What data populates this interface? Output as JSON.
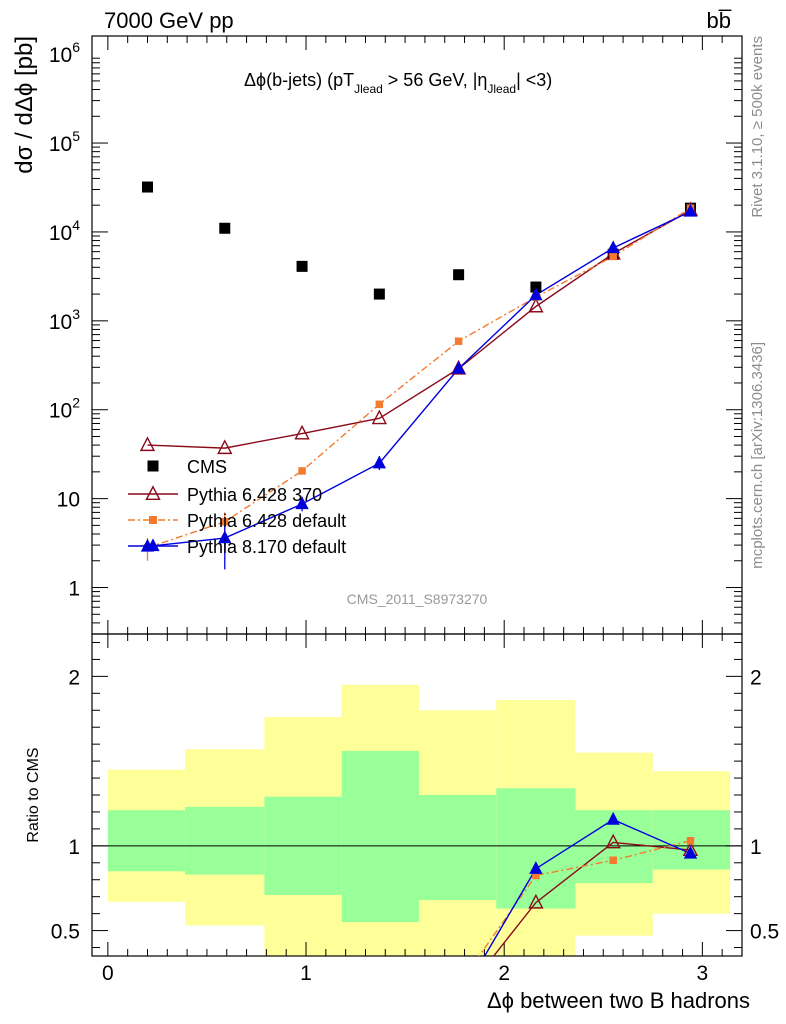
{
  "header": {
    "left_label": "7000 GeV pp",
    "right_label": "bb̅"
  },
  "side_labels": {
    "upper": "Rivet 3.1.10, ≥ 500k events",
    "lower": "mcplots.cern.ch [arXiv:1306.3436]"
  },
  "colors": {
    "cms": "#000000",
    "pythia6_z2": "#8b0a1a",
    "pythia6_default": "#f47a30",
    "pythia8": "#0000dd",
    "band_inner": "#99ff99",
    "band_outer": "#ffff99"
  },
  "chart_data": [
    {
      "type": "scatter",
      "panel": "main",
      "title": "Δϕ(b-jets) (pT",
      "title_sub_1": "Jlead",
      "title_mid": " >  56 GeV, |η",
      "title_sub_2": "Jlead",
      "title_end": "| <3)",
      "watermark": "CMS_2011_S8973270",
      "ylabel": "dσ / dΔϕ [pb]",
      "yscale": "log",
      "xlim": [
        -0.08,
        3.2
      ],
      "ylim": [
        0.3,
        1600000
      ],
      "yticks": [
        1,
        10,
        100,
        1000,
        10000,
        100000,
        1000000
      ],
      "ytick_labels": [
        {
          "base": "1",
          "exp": ""
        },
        {
          "base": "10",
          "exp": ""
        },
        {
          "base": "10",
          "exp": "2"
        },
        {
          "base": "10",
          "exp": "3"
        },
        {
          "base": "10",
          "exp": "4"
        },
        {
          "base": "10",
          "exp": "5"
        },
        {
          "base": "10",
          "exp": "6"
        }
      ],
      "legend_position": "lower-left",
      "x": [
        0.2,
        0.59,
        0.98,
        1.37,
        1.77,
        2.16,
        2.55,
        2.94
      ],
      "series": [
        {
          "name": "CMS",
          "values": [
            32000,
            11000,
            4100,
            2000,
            3300,
            2400,
            5600,
            18500
          ]
        },
        {
          "name": "Pythia 6.428 370",
          "values": [
            40,
            37,
            54,
            80,
            290,
            1450,
            5700,
            17500
          ]
        },
        {
          "name": "Pythia 6.428 default",
          "values": [
            2.8,
            5.5,
            20.5,
            115,
            590,
            1850,
            5300,
            18500
          ]
        },
        {
          "name": "Pythia 8.170 default",
          "values": [
            2.9,
            3.6,
            8.7,
            25,
            290,
            1950,
            6600,
            17000
          ]
        }
      ],
      "errors": {
        "Pythia 6.428 default": [
          [
            2.0,
            3.6
          ],
          [
            4.2,
            7.0
          ],
          null,
          null,
          null,
          null,
          null,
          null
        ],
        "Pythia 8.170 default": [
          null,
          [
            1.6,
            6.0
          ],
          [
            7.2,
            10.5
          ],
          [
            21,
            30
          ],
          null,
          null,
          null,
          null
        ]
      }
    },
    {
      "type": "scatter",
      "panel": "ratio",
      "xlabel": "Δϕ between two B hadrons",
      "ylabel": "Ratio to CMS",
      "xlim": [
        -0.08,
        3.2
      ],
      "ylim": [
        0.35,
        2.25
      ],
      "xticks": [
        0,
        1,
        2,
        3
      ],
      "xtick_labels": [
        "0",
        "1",
        "2",
        "3"
      ],
      "yticks": [
        0.5,
        1,
        2
      ],
      "ytick_labels": [
        "0.5",
        "1",
        "2"
      ],
      "band_edges": [
        0.0,
        0.39,
        0.79,
        1.18,
        1.57,
        1.96,
        2.36,
        2.75,
        3.14
      ],
      "band_inner": [
        [
          0.85,
          1.21
        ],
        [
          0.83,
          1.23
        ],
        [
          0.71,
          1.29
        ],
        [
          0.55,
          1.56
        ],
        [
          0.68,
          1.3
        ],
        [
          0.63,
          1.34
        ],
        [
          0.78,
          1.21
        ],
        [
          0.86,
          1.21
        ]
      ],
      "band_outer": [
        [
          0.67,
          1.45
        ],
        [
          0.53,
          1.57
        ],
        [
          0.3,
          1.76
        ],
        [
          0.3,
          1.95
        ],
        [
          0.3,
          1.8
        ],
        [
          0.3,
          1.86
        ],
        [
          0.47,
          1.55
        ],
        [
          0.6,
          1.44
        ]
      ],
      "x": [
        2.16,
        2.55,
        2.94
      ],
      "series": [
        {
          "name": "Pythia 6.428 370",
          "values": [
            0.665,
            1.02,
            0.975
          ]
        },
        {
          "name": "Pythia 6.428 default",
          "values": [
            0.825,
            0.915,
            1.03
          ]
        },
        {
          "name": "Pythia 8.170 default",
          "values": [
            0.865,
            1.155,
            0.955
          ]
        }
      ]
    }
  ]
}
